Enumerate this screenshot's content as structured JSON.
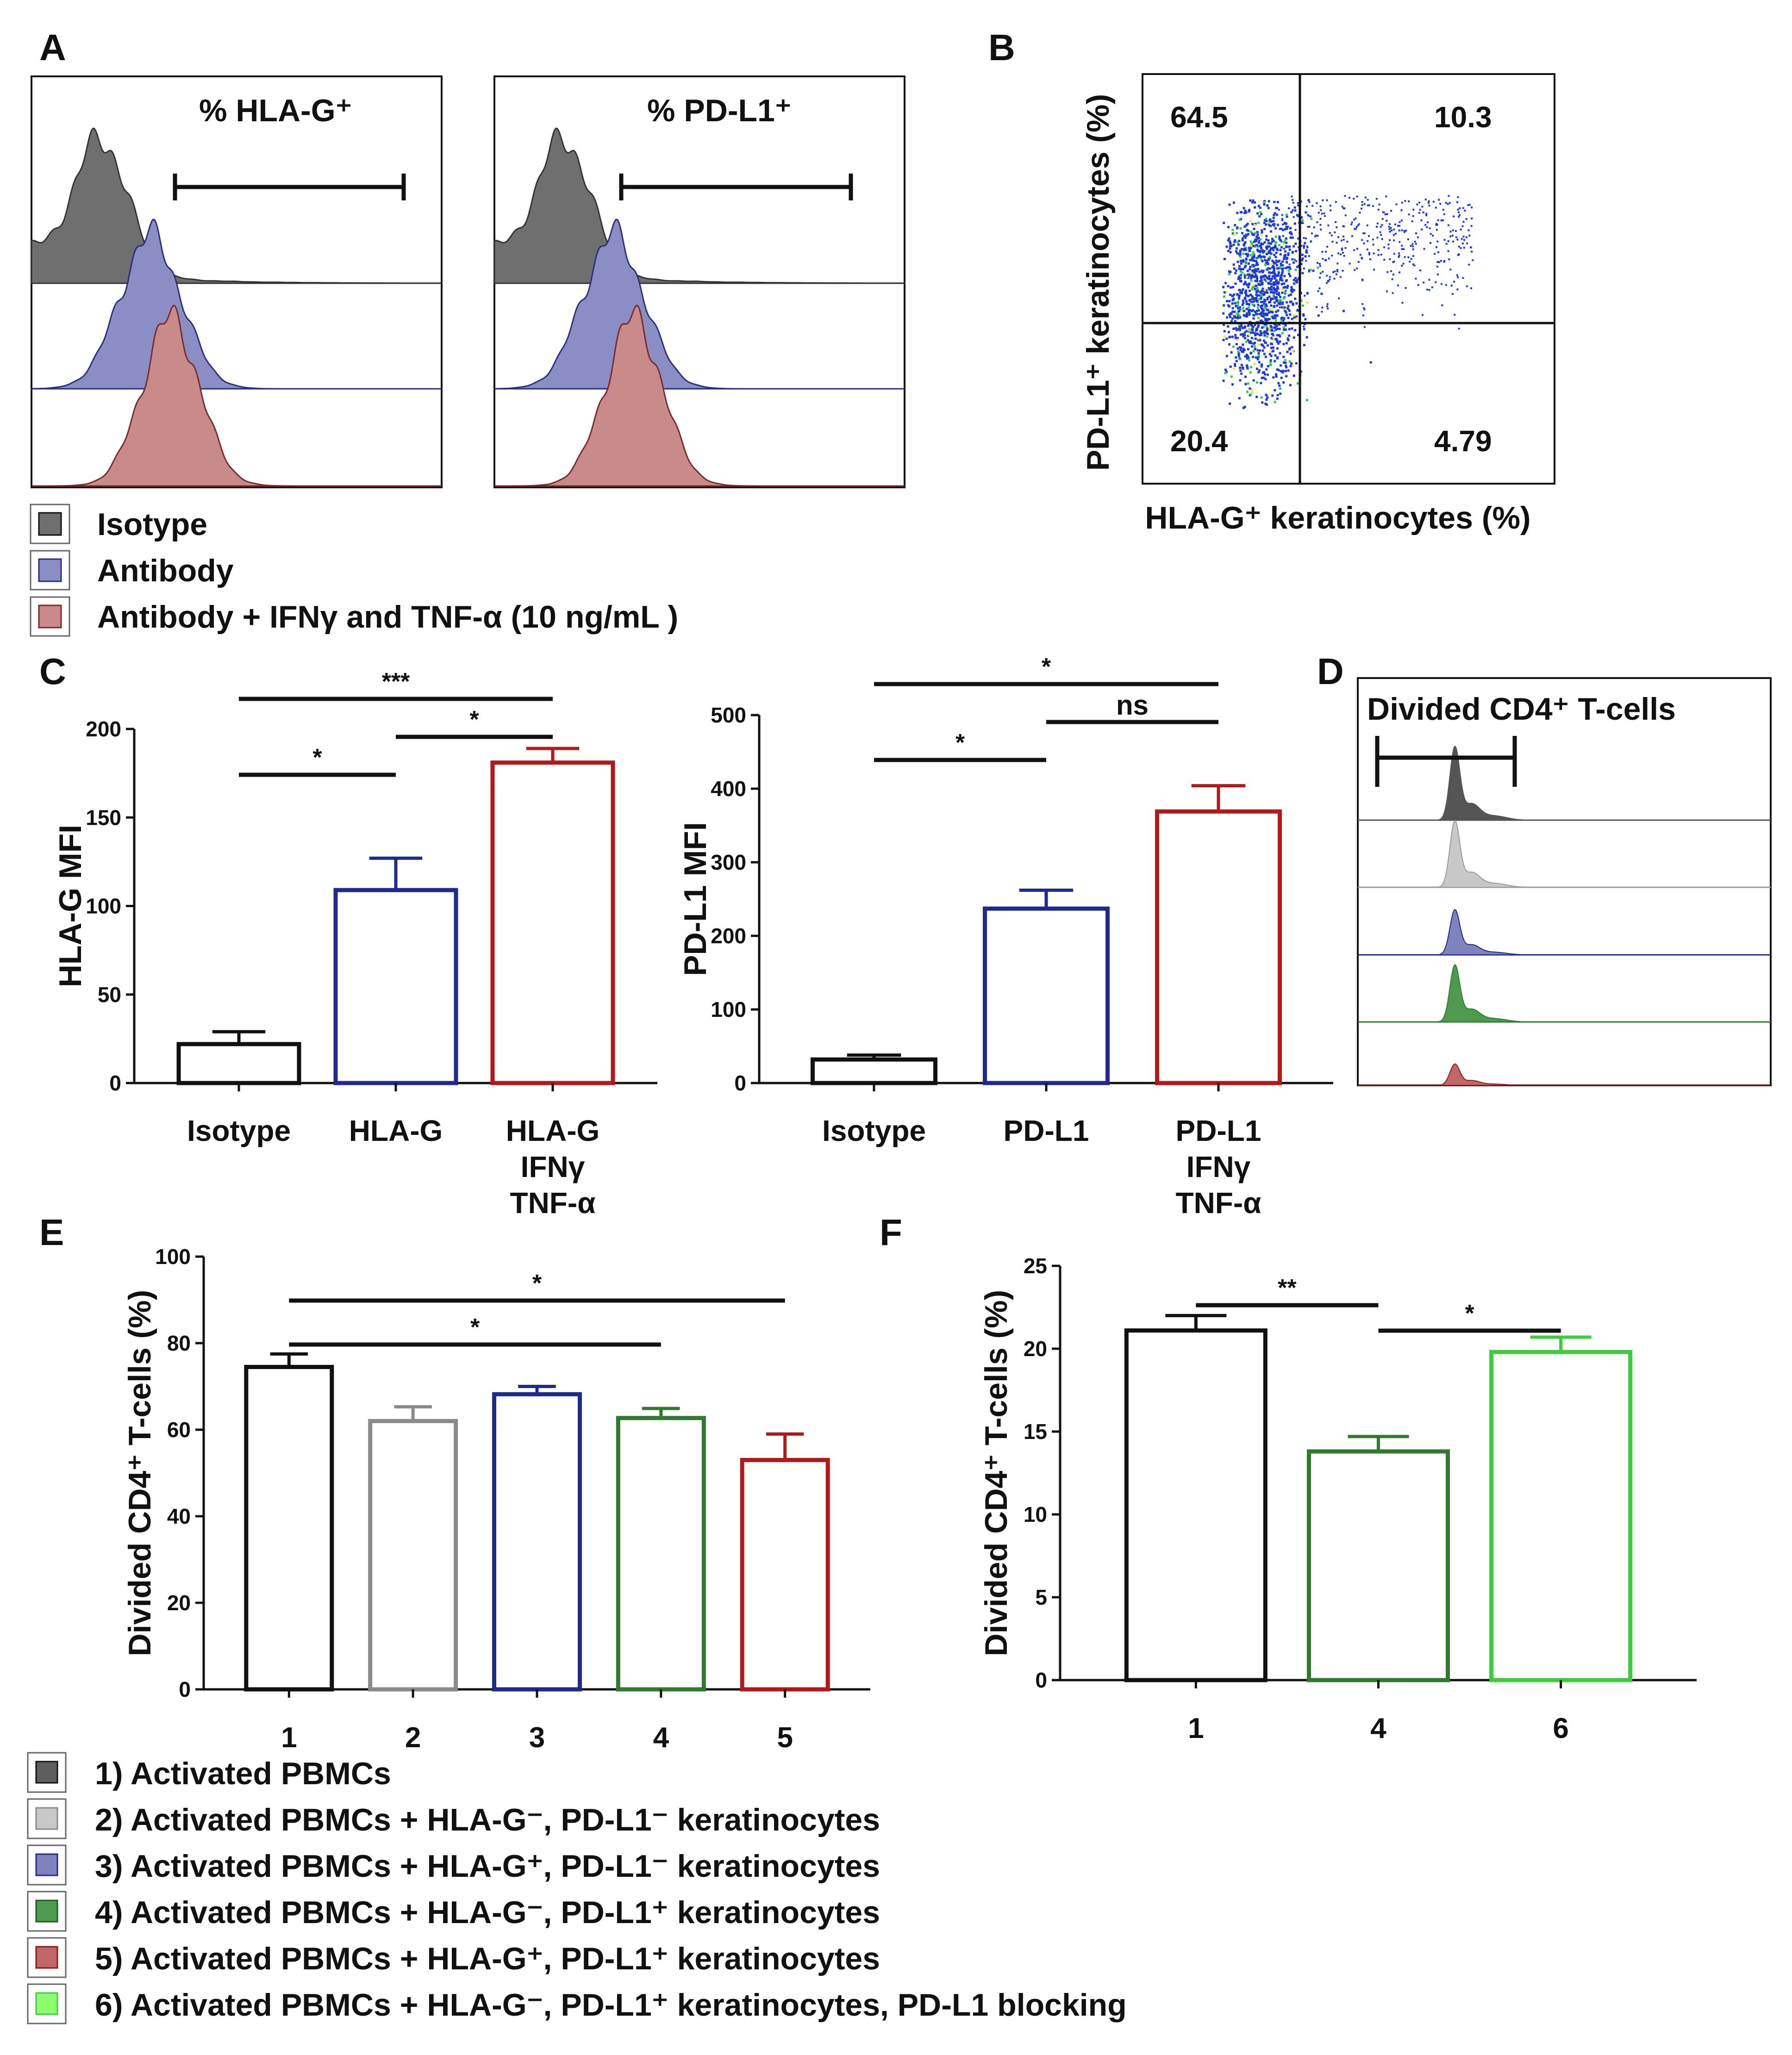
{
  "panels": {
    "a": "A",
    "b": "B",
    "c": "C",
    "d": "D",
    "e": "E",
    "f": "F"
  },
  "colors": {
    "isotype": "#6f6f6f",
    "antibody": "#5a5fa6",
    "antibody_cyt": "#b05252",
    "black": "#111111",
    "grey": "#8a8a8a",
    "blue": "#1f2a8a",
    "green": "#2f7a2f",
    "red": "#b01a1a",
    "light_green": "#3dcc3d"
  },
  "panel_a": {
    "hist1_title": "% HLA-G⁺",
    "hist2_title": "% PD-L1⁺",
    "legend": [
      "Isotype",
      "Antibody",
      "Antibody + IFNγ and TNF-α (10 ng/mL )"
    ]
  },
  "panel_b": {
    "ylabel": "PD-L1⁺ keratinocytes (%)",
    "xlabel": "HLA-G⁺ keratinocytes (%)",
    "quadrants": {
      "upper_left": "64.5",
      "upper_right": "10.3",
      "lower_left": "20.4",
      "lower_right": "4.79"
    }
  },
  "panel_d": {
    "title": "Divided CD4⁺ T-cells"
  },
  "panel_e_legend": [
    "1) Activated PBMCs",
    "2) Activated PBMCs + HLA-G⁻, PD-L1⁻ keratinocytes",
    "3) Activated PBMCs + HLA-G⁺, PD-L1⁻ keratinocytes",
    "4) Activated PBMCs + HLA-G⁻, PD-L1⁺ keratinocytes",
    "5) Activated PBMCs + HLA-G⁺, PD-L1⁺ keratinocytes",
    "6) Activated PBMCs + HLA-G⁻, PD-L1⁺ keratinocytes, PD-L1 blocking"
  ],
  "chart_data": [
    {
      "id": "c1",
      "type": "bar",
      "ylabel": "HLA-G MFI",
      "ylim": [
        0,
        200
      ],
      "yticks": [
        0,
        50,
        100,
        150,
        200
      ],
      "categories": [
        [
          "Isotype"
        ],
        [
          "HLA-G"
        ],
        [
          "HLA-G",
          "IFNγ",
          "TNF-α"
        ]
      ],
      "values": [
        22,
        109,
        181
      ],
      "errors": [
        7,
        18,
        8
      ],
      "colors": [
        "black",
        "blue",
        "red"
      ],
      "significance": [
        {
          "from": 0,
          "to": 2,
          "label": "***"
        },
        {
          "from": 1,
          "to": 2,
          "label": "*"
        },
        {
          "from": 0,
          "to": 1,
          "label": "*"
        }
      ]
    },
    {
      "id": "c2",
      "type": "bar",
      "ylabel": "PD-L1 MFI",
      "ylim": [
        0,
        500
      ],
      "yticks": [
        0,
        100,
        200,
        300,
        400,
        500
      ],
      "categories": [
        [
          "Isotype"
        ],
        [
          "PD-L1"
        ],
        [
          "PD-L1",
          "IFNγ",
          "TNF-α"
        ]
      ],
      "values": [
        32,
        237,
        369
      ],
      "errors": [
        6,
        25,
        35
      ],
      "colors": [
        "black",
        "blue",
        "red"
      ],
      "significance": [
        {
          "from": 0,
          "to": 2,
          "label": "*"
        },
        {
          "from": 1,
          "to": 2,
          "label": "ns"
        },
        {
          "from": 0,
          "to": 1,
          "label": "*"
        }
      ]
    },
    {
      "id": "e",
      "type": "bar",
      "ylabel": "Divided CD4⁺ T-cells (%)",
      "ylim": [
        0,
        100
      ],
      "yticks": [
        0,
        20,
        40,
        60,
        80,
        100
      ],
      "categories": [
        [
          "1"
        ],
        [
          "2"
        ],
        [
          "3"
        ],
        [
          "4"
        ],
        [
          "5"
        ]
      ],
      "values": [
        74.5,
        62,
        68.2,
        62.7,
        53
      ],
      "errors": [
        3,
        3.3,
        1.8,
        2.2,
        6
      ],
      "colors": [
        "black",
        "grey",
        "blue",
        "green",
        "red"
      ],
      "significance": [
        {
          "from": 0,
          "to": 4,
          "label": "*"
        },
        {
          "from": 0,
          "to": 3,
          "label": "*"
        }
      ]
    },
    {
      "id": "f",
      "type": "bar",
      "ylabel": "Divided CD4⁺ T-cells (%)",
      "ylim": [
        0,
        25
      ],
      "yticks": [
        0,
        5,
        10,
        15,
        20,
        25
      ],
      "categories": [
        [
          "1"
        ],
        [
          "4"
        ],
        [
          "6"
        ]
      ],
      "values": [
        21.1,
        13.8,
        19.8
      ],
      "errors": [
        0.9,
        0.9,
        0.9
      ],
      "colors": [
        "black",
        "green",
        "light_green"
      ],
      "significance": [
        {
          "from": 0,
          "to": 1,
          "label": "**"
        },
        {
          "from": 1,
          "to": 2,
          "label": "*"
        }
      ]
    }
  ]
}
